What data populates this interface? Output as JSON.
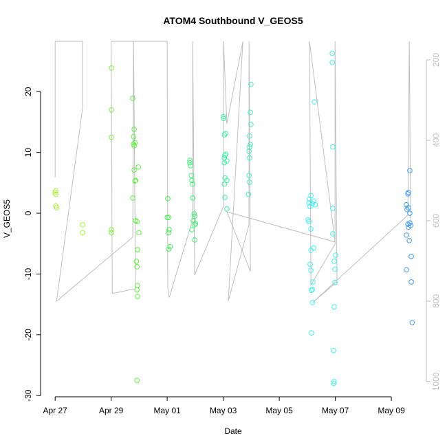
{
  "chart_data": {
    "type": "scatter",
    "title": "ATOM4 Southbound V_GEOS5",
    "xlabel": "Date",
    "ylabel": "V_GEOS5",
    "xlim": [
      -0.52,
      13.25
    ],
    "xticks": [
      {
        "value": 0,
        "label": "Apr 27"
      },
      {
        "value": 2,
        "label": "Apr 29"
      },
      {
        "value": 4,
        "label": "May 01"
      },
      {
        "value": 6,
        "label": "May 03"
      },
      {
        "value": 8,
        "label": "May 05"
      },
      {
        "value": 10,
        "label": "May 07"
      },
      {
        "value": 12,
        "label": "May 09"
      }
    ],
    "ylim": [
      -30.2,
      28.4
    ],
    "yticks": [
      -30,
      -20,
      -10,
      0,
      10,
      20
    ],
    "y2lim": [
      1038,
      152
    ],
    "y2ticks": [
      200,
      400,
      600,
      800,
      1000
    ],
    "series": [
      {
        "color": "#bebebe",
        "axis": "y2",
        "x": [
          0,
          0,
          0.98,
          0.98,
          0.05,
          2.77,
          2.8,
          2.87,
          2.04,
          2.0,
          4.0,
          4.02,
          4.07,
          4.91,
          4.91,
          4.98,
          6.01,
          6.01,
          6.13,
          6.7,
          6.18,
          6.92,
          6.92,
          6.97,
          6.13,
          9.99,
          9.08,
          9.13,
          9.99,
          9.99,
          10.06,
          9.2,
          12.59,
          12.64,
          12.69
        ],
        "values": [
          492,
          154,
          154,
          320,
          800,
          641,
          154,
          769,
          781,
          154,
          154,
          769,
          791,
          598,
          154,
          735,
          564,
          154,
          359,
          154,
          800,
          610,
          154,
          726,
          578,
          653,
          154,
          760,
          658,
          154,
          752,
          803,
          586,
          154,
          615
        ]
      },
      {
        "color": "#a6f03c",
        "x": [
          0.02,
          0,
          0.02,
          0.02,
          0.05,
          0.98,
          0.98
        ],
        "values": [
          3.7,
          3.4,
          3.1,
          1.2,
          0.9,
          -1.9,
          -3.2
        ]
      },
      {
        "color": "#7ef03c",
        "x": [
          2.01,
          2.01,
          2.01,
          2.01,
          2.01
        ],
        "values": [
          23.9,
          17.0,
          12.5,
          -2.7,
          -3.2
        ]
      },
      {
        "color": "#5cf03c",
        "x": [
          2.77,
          2.82,
          2.8,
          2.85,
          2.8,
          2.82,
          2.97,
          2.82,
          2.87,
          2.85,
          2.77,
          2.87,
          2.92,
          2.99,
          2.94,
          2.9,
          2.92,
          2.94,
          2.92,
          2.94,
          2.92
        ],
        "values": [
          18.9,
          13.8,
          12.6,
          11.6,
          11.4,
          11.1,
          7.6,
          7.1,
          5.4,
          5.3,
          2.5,
          -1.2,
          -1.4,
          -3.2,
          -6.0,
          -7.9,
          -8.8,
          -11.9,
          -12.6,
          -13.7,
          -27.5
        ]
      },
      {
        "color": "#3cf04c",
        "x": [
          4.02,
          4.0,
          4.05,
          4.07,
          4.05,
          4.1,
          4.05
        ],
        "values": [
          2.4,
          -0.7,
          -0.7,
          -2.7,
          -3.2,
          -5.5,
          -5.9
        ]
      },
      {
        "color": "#3cf070",
        "x": [
          4.81,
          4.81,
          4.83,
          4.86,
          4.88,
          4.91,
          4.91,
          4.96,
          4.98,
          4.93,
          5.01,
          4.98,
          4.88,
          4.98
        ],
        "values": [
          8.7,
          8.3,
          7.8,
          6.2,
          5.4,
          4.8,
          2.5,
          -0.1,
          -0.5,
          -1.2,
          -1.7,
          -1.9,
          -2.7,
          -4.4
        ]
      },
      {
        "color": "#3cf0a0",
        "x": [
          6.01,
          6.01,
          6.09,
          6.04,
          6.09,
          6.06,
          6.04,
          6.13,
          6.04,
          6.06,
          6.13,
          6.04,
          6.06,
          6.13
        ],
        "values": [
          15.9,
          15.6,
          13.1,
          12.9,
          9.7,
          9.5,
          9.1,
          8.6,
          8.3,
          5.8,
          5.4,
          4.8,
          2.6,
          0.7
        ]
      },
      {
        "color": "#3cf0b4",
        "x": [
          6.99,
          6.97,
          6.99,
          6.94,
          6.97,
          6.94,
          6.92,
          6.94,
          6.92,
          6.94,
          6.9
        ],
        "values": [
          21.2,
          16.6,
          14.6,
          12.7,
          11.3,
          10.9,
          10.2,
          9.1,
          6.2,
          5.1,
          3.1
        ]
      },
      {
        "color": "#3cf0f0",
        "x": [
          9.25,
          9.13,
          9.08,
          9.23,
          9.06,
          9.18,
          9.28,
          9.1,
          9.03,
          9.06,
          9.13,
          9.23,
          9.13,
          9.1,
          9.13,
          9.2,
          9.18,
          9.15,
          9.18,
          9.15
        ],
        "values": [
          18.3,
          2.9,
          2.3,
          2.0,
          1.7,
          1.6,
          1.4,
          1.1,
          -1.1,
          -1.4,
          -2.6,
          -5.7,
          -6.1,
          -8.4,
          -9.4,
          -11.3,
          -12.5,
          -12.7,
          -14.7,
          -19.7
        ]
      },
      {
        "color": "#3cf0e8",
        "x": [
          9.89,
          9.89,
          9.91,
          9.91,
          9.91,
          10.01,
          9.96,
          9.99,
          9.99,
          9.96,
          9.94,
          9.96,
          9.94
        ],
        "values": [
          26.3,
          24.8,
          10.9,
          0.8,
          -3.4,
          -6.9,
          -7.9,
          -9.2,
          -11.4,
          -15.4,
          -22.6,
          -27.7,
          -28.0
        ]
      },
      {
        "color": "#3c9cf0",
        "x": [
          12.66,
          12.61,
          12.59,
          12.54,
          12.61,
          12.56,
          12.66,
          12.66,
          12.59,
          12.69,
          12.61,
          12.54,
          12.64,
          12.71,
          12.54,
          12.71,
          12.74
        ],
        "values": [
          7.0,
          3.4,
          3.2,
          1.4,
          0.9,
          0.6,
          0,
          -1.6,
          -1.8,
          -2.0,
          -2.3,
          -3.6,
          -4.5,
          -7.1,
          -9.3,
          -11.3,
          -18.0
        ]
      }
    ]
  }
}
